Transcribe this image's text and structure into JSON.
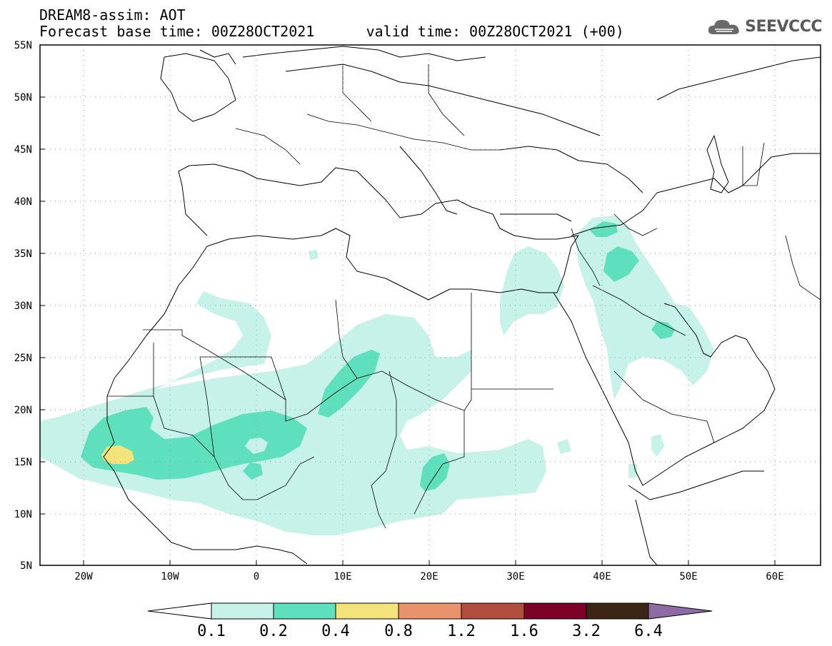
{
  "header": {
    "title": "DREAM8-assim: AOT",
    "forecast_base": "Forecast base time: 00Z28OCT2021",
    "valid_time": "valid time: 00Z28OCT2021 (+00)"
  },
  "logo": {
    "text": "SEEVCCC",
    "icon": "cloud-icon"
  },
  "map": {
    "lon_range": [
      -25,
      65
    ],
    "lat_range": [
      5,
      55
    ],
    "lat_ticks": [
      "5N",
      "10N",
      "15N",
      "20N",
      "25N",
      "30N",
      "35N",
      "40N",
      "45N",
      "50N",
      "55N"
    ],
    "lon_ticks": [
      "20W",
      "10W",
      "0",
      "10E",
      "20E",
      "30E",
      "40E",
      "50E",
      "60E"
    ],
    "grid": "dotted"
  },
  "colorbar": {
    "labels": [
      "0.1",
      "0.2",
      "0.4",
      "0.8",
      "1.2",
      "1.6",
      "3.2",
      "6.4"
    ],
    "colors": [
      "#ffffff",
      "#c6f2ea",
      "#5de0bb",
      "#f2e37a",
      "#e9926b",
      "#b14f3f",
      "#7c0228",
      "#3b2515",
      "#8f6ba5"
    ]
  }
}
